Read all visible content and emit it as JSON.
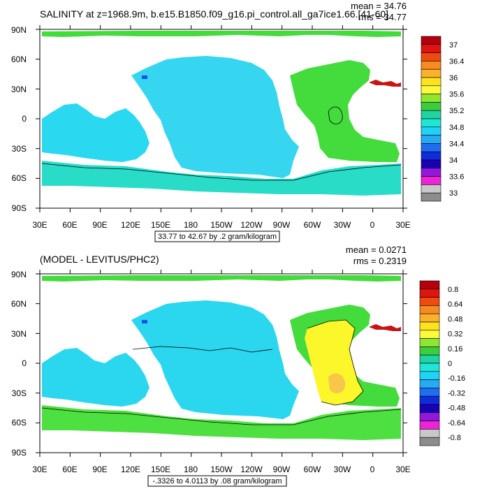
{
  "panels": [
    {
      "title": "SALINITY at z=1968.9m, b.e15.B1850.f09_g16.pi_control.all_ga7ice1.66.[41-60]",
      "mean_text": "mean = 34.76",
      "rms_text": "rms = 34.77",
      "range_text": "33.77 to 42.67 by .2 gram/kilogram",
      "lat_labels": [
        "90N",
        "60N",
        "30N",
        "0",
        "30S",
        "60S",
        "90S"
      ],
      "lon_labels": [
        "30E",
        "60E",
        "90E",
        "120E",
        "150E",
        "180",
        "150W",
        "120W",
        "90W",
        "60W",
        "30W",
        "0",
        "30E"
      ],
      "colorbar_labels": [
        "37",
        "36.4",
        "36",
        "35.6",
        "35.2",
        "34.8",
        "34.4",
        "34",
        "33.6",
        "33"
      ],
      "colorbar_colors": [
        "#b2000d",
        "#e0140f",
        "#f04a10",
        "#f78a20",
        "#fbb12c",
        "#fde21e",
        "#f9fb3c",
        "#8ee532",
        "#3ccd3c",
        "#1fd4a0",
        "#20e6d6",
        "#1fd2f6",
        "#26aaf4",
        "#1e6ff0",
        "#0f2bdc",
        "#1a00b4",
        "#9418d8",
        "#ee22d6",
        "#c8c8c8",
        "#8c8c8c"
      ]
    },
    {
      "title": "(MODEL - LEVITUS/PHC2)",
      "mean_text": "mean = 0.0271",
      "rms_text": "rms = 0.2319",
      "range_text": "-.3326 to 4.0113 by .08 gram/kilogram",
      "lat_labels": [
        "90N",
        "60N",
        "30N",
        "0",
        "30S",
        "60S",
        "90S"
      ],
      "lon_labels": [
        "30E",
        "60E",
        "90E",
        "120E",
        "150E",
        "180",
        "150W",
        "120W",
        "90W",
        "60W",
        "30W",
        "0",
        "30E"
      ],
      "colorbar_labels": [
        "0.8",
        "0.64",
        "0.48",
        "0.32",
        "0.16",
        "0",
        "-0.16",
        "-0.32",
        "-0.48",
        "-0.64",
        "-0.8"
      ],
      "colorbar_colors": [
        "#b2000d",
        "#e0140f",
        "#f04a10",
        "#f78a20",
        "#fbb12c",
        "#fde21e",
        "#f9fb3c",
        "#8ee532",
        "#3ccd3c",
        "#1fd4a0",
        "#20e6d6",
        "#1fd2f6",
        "#26aaf4",
        "#1e6ff0",
        "#0f2bdc",
        "#1a00b4",
        "#9418d8",
        "#ee22d6",
        "#c8c8c8",
        "#8c8c8c"
      ]
    }
  ],
  "field_colors": {
    "pacific": "#36d6f0",
    "indian": "#2ad8f0",
    "atlantic_green": "#44dc3c",
    "southern_teal": "#28dcc8",
    "southern_green": "#4ee040",
    "diff_cyan": "#2bd6ef",
    "diff_teal": "#26d8c0",
    "diff_yellow": "#fbf72a",
    "diff_orange": "#f7c64a",
    "red_med": "#c81414",
    "blue_spot": "#1e50e6",
    "contour": "#000000"
  }
}
